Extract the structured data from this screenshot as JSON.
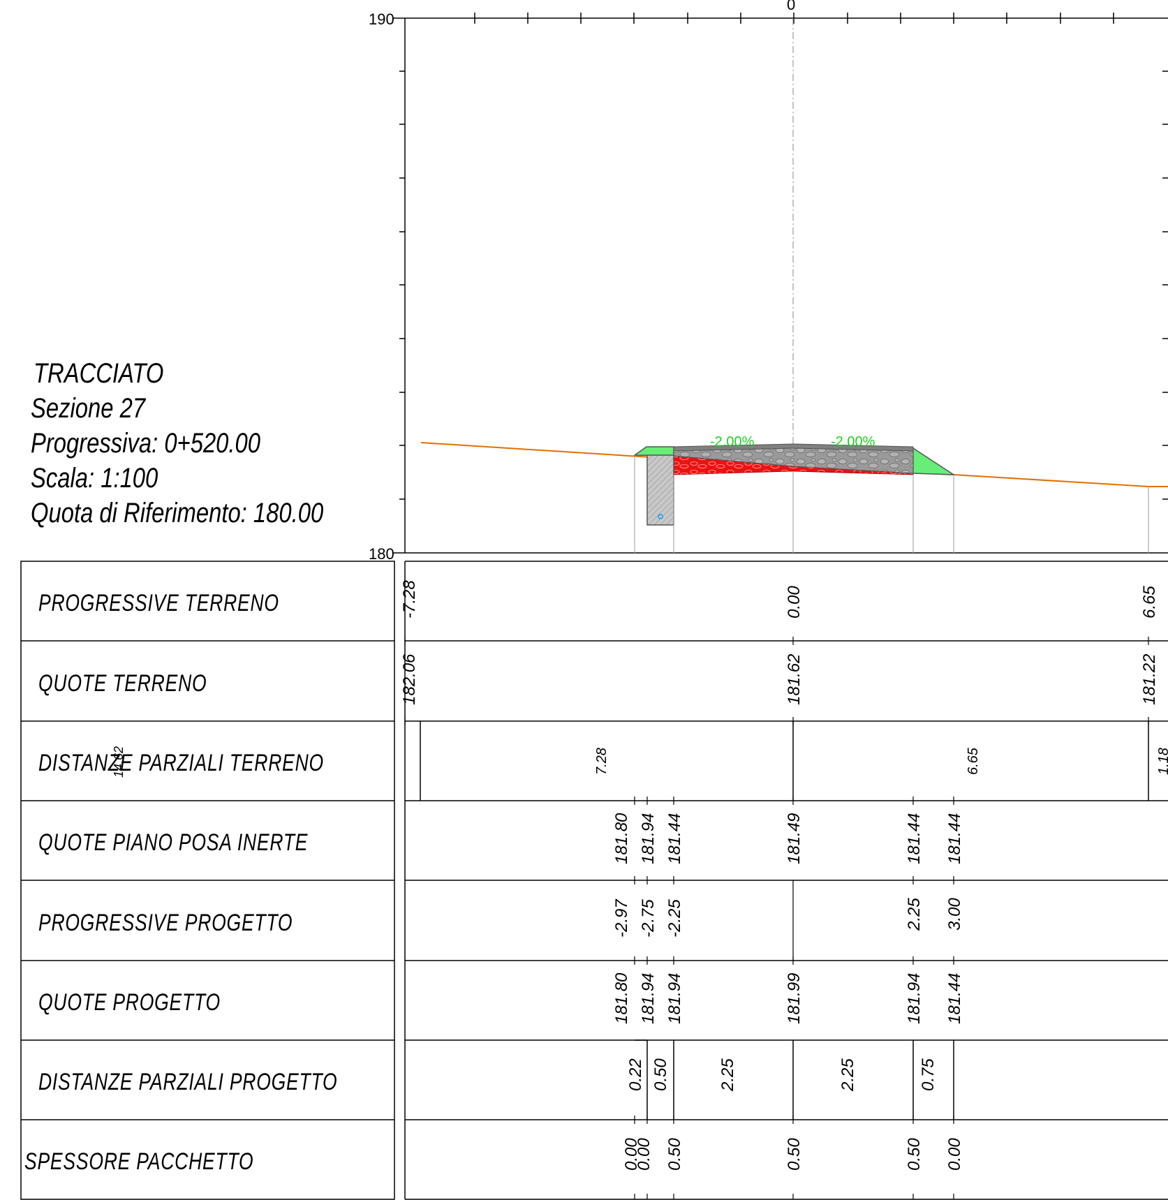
{
  "info": {
    "line1": "TRACCIATO",
    "line2": "Sezione 27",
    "line3": "Progressiva: 0+520.00",
    "line4": "Scala: 1:100",
    "line5": "Quota di Riferimento: 180.00"
  },
  "axis": {
    "top_label": "190",
    "bottom_label": "180",
    "center_label": "0"
  },
  "slopes": {
    "left": "-2.00%",
    "right": "-2.00%"
  },
  "rows": {
    "progressive_terreno": "PROGRESSIVE TERRENO",
    "quote_terreno": "QUOTE TERRENO",
    "distanze_parziali_terreno": "DISTANZE PARZIALI TERRENO",
    "quote_piano_posa": "QUOTE PIANO POSA INERTE",
    "progressive_progetto": "PROGRESSIVE PROGETTO",
    "quote_progetto": "QUOTE PROGETTO",
    "distanze_parziali_progetto": "DISTANZE PARZIALI PROGETTO",
    "spessore_pacchetto": "SPESSORE PACCHETTO"
  },
  "values": {
    "prog_terreno": [
      "-7.28",
      "0.00",
      "6.65"
    ],
    "quote_terreno": [
      "182.06",
      "181.62",
      "181.22"
    ],
    "dist_terreno": [
      "14.62",
      "7.28",
      "6.65",
      "1.18"
    ],
    "quote_posa": [
      "181.80",
      "181.94",
      "181.44",
      "181.49",
      "181.44",
      "181.44"
    ],
    "prog_progetto": [
      "-2.97",
      "-2.75",
      "-2.25",
      "2.25",
      "3.00"
    ],
    "quote_progetto": [
      "181.80",
      "181.94",
      "181.94",
      "181.99",
      "181.94",
      "181.44"
    ],
    "dist_progetto": [
      "0.22",
      "0.50",
      "2.25",
      "2.25",
      "0.75"
    ],
    "spessore": [
      "0.00",
      "0.00",
      "0.50",
      "0.50",
      "0.50",
      "0.00"
    ]
  },
  "colors": {
    "terrain": "#e07000",
    "pavement": "#808080",
    "fill_green": "#66ee77",
    "subbase_red": "#ee1111",
    "slope_text": "#22cc22"
  }
}
